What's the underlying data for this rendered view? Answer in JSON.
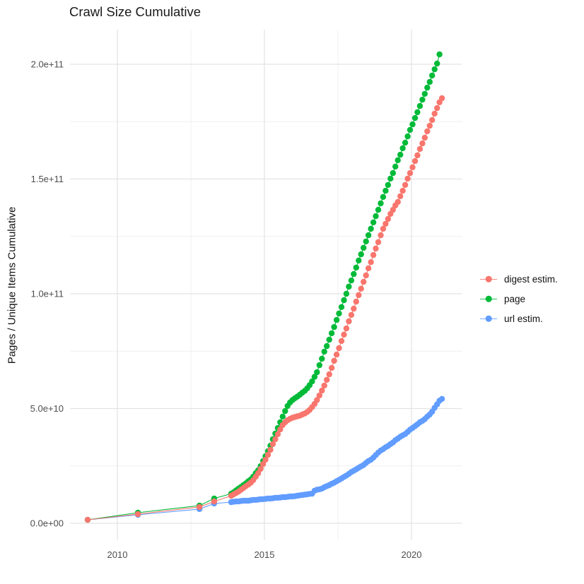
{
  "title": "Crawl Size Cumulative",
  "y_axis": {
    "label": "Pages / Unique Items Cumulative"
  },
  "legend": {
    "position": "right"
  },
  "colors": {
    "digest": "#F8766D",
    "page": "#00BA38",
    "url": "#619CFF",
    "grid_major": "#E3E3E3",
    "grid_minor": "#EFEFEF",
    "tick_text": "#4d4d4d"
  },
  "chart_data": {
    "type": "scatter",
    "title": "Crawl Size Cumulative",
    "xlabel": "",
    "ylabel": "Pages / Unique Items Cumulative",
    "grid": true,
    "legend_position": "right",
    "value_unit": "items, stored in billions (1e9)",
    "xlim": [
      2008.4,
      2021.7
    ],
    "ylim_e9": [
      0,
      215
    ],
    "x_ticks": [
      {
        "v": 2010,
        "label": "2010"
      },
      {
        "v": 2015,
        "label": "2015"
      },
      {
        "v": 2020,
        "label": "2020"
      }
    ],
    "x_minor": [
      2012.5,
      2017.5
    ],
    "y_ticks": [
      {
        "v": 0,
        "label": "0.0e+00"
      },
      {
        "v": 50,
        "label": "5.0e+10"
      },
      {
        "v": 100,
        "label": "1.0e+11"
      },
      {
        "v": 150,
        "label": "1.5e+11"
      },
      {
        "v": 200,
        "label": "2.0e+11"
      }
    ],
    "y_minor": [
      25,
      75,
      125,
      175
    ],
    "monthly_step": 0.08333,
    "series": [
      {
        "name": "digest estim.",
        "color": "#F8766D",
        "early": [
          [
            2008.99,
            1.5
          ],
          [
            2010.7,
            4.0
          ],
          [
            2012.79,
            7.1
          ],
          [
            2013.29,
            9.5
          ]
        ],
        "monthly_start": 2013.87,
        "monthly_values": [
          12.0,
          12.6,
          13.2,
          13.8,
          14.6,
          15.4,
          16.2,
          16.9,
          17.7,
          18.8,
          20.3,
          21.8,
          23.7,
          25.8,
          27.7,
          29.8,
          32.0,
          34.5,
          36.6,
          38.8,
          40.9,
          42.8,
          44.0,
          44.9,
          45.5,
          46.0,
          46.3,
          46.6,
          46.9,
          47.4,
          47.8,
          48.5,
          49.4,
          50.6,
          52.0,
          53.7,
          55.7,
          57.8,
          60.0,
          62.5,
          64.9,
          67.7,
          70.8,
          73.5,
          76.3,
          79.4,
          82.2,
          84.9,
          88.0,
          90.8,
          93.5,
          96.6,
          99.4,
          102.2,
          105.2,
          108.0,
          111.1,
          113.8,
          116.9,
          119.7,
          122.5,
          125.5,
          128.3,
          130.5,
          132.6,
          134.8,
          136.6,
          138.5,
          140.0,
          142.5,
          144.9,
          147.4,
          150.2,
          152.6,
          155.1,
          157.8,
          160.3,
          163.1,
          165.5,
          168.0,
          170.8,
          173.2,
          175.7,
          178.5,
          180.9,
          183.4,
          185.2
        ]
      },
      {
        "name": "page",
        "color": "#00BA38",
        "early": [
          [
            2008.99,
            1.5
          ],
          [
            2010.7,
            4.6
          ],
          [
            2012.79,
            7.7
          ],
          [
            2013.29,
            10.8
          ]
        ],
        "monthly_start": 2013.87,
        "monthly_values": [
          12.9,
          13.5,
          14.3,
          15.1,
          15.8,
          16.6,
          17.4,
          18.3,
          19.1,
          20.3,
          21.8,
          23.1,
          24.9,
          27.1,
          29.2,
          31.4,
          33.8,
          36.6,
          39.1,
          41.5,
          44.0,
          46.5,
          48.9,
          51.1,
          52.6,
          53.7,
          54.5,
          55.2,
          56.0,
          56.9,
          57.7,
          58.8,
          60.2,
          61.8,
          63.8,
          65.8,
          68.9,
          71.7,
          74.8,
          77.2,
          80.0,
          82.8,
          85.5,
          88.6,
          91.4,
          94.2,
          97.2,
          100.0,
          103.1,
          105.8,
          108.6,
          111.4,
          114.5,
          117.2,
          120.0,
          122.8,
          125.5,
          128.3,
          131.1,
          133.8,
          136.6,
          139.4,
          142.2,
          144.9,
          147.4,
          150.2,
          152.6,
          155.4,
          158.2,
          160.6,
          163.4,
          165.8,
          168.6,
          171.4,
          173.8,
          176.6,
          179.1,
          181.8,
          184.6,
          187.1,
          189.8,
          192.3,
          195.1,
          197.8,
          200.3,
          204.3
        ]
      },
      {
        "name": "url estim.",
        "color": "#619CFF",
        "early": [
          [
            2008.99,
            1.5
          ],
          [
            2010.7,
            3.7
          ],
          [
            2012.79,
            6.2
          ],
          [
            2013.29,
            8.6
          ]
        ],
        "monthly_start": 2013.87,
        "monthly_values": [
          9.2,
          9.4,
          9.5,
          9.5,
          9.7,
          9.8,
          9.8,
          9.8,
          10.0,
          10.2,
          10.2,
          10.3,
          10.5,
          10.5,
          10.6,
          10.8,
          10.8,
          10.9,
          11.1,
          11.1,
          11.2,
          11.4,
          11.4,
          11.5,
          11.7,
          11.7,
          11.8,
          12.0,
          12.2,
          12.3,
          12.5,
          12.6,
          12.8,
          12.9,
          14.2,
          14.6,
          14.8,
          15.1,
          15.7,
          16.2,
          16.6,
          17.2,
          17.7,
          18.3,
          18.9,
          19.5,
          20.2,
          20.8,
          21.5,
          22.3,
          22.9,
          23.5,
          24.2,
          24.8,
          25.4,
          26.3,
          27.1,
          27.7,
          28.6,
          29.7,
          30.8,
          31.7,
          32.3,
          33.1,
          33.7,
          34.5,
          35.2,
          36.2,
          36.9,
          37.7,
          38.3,
          38.9,
          39.8,
          40.8,
          41.5,
          42.3,
          43.1,
          44.0,
          44.6,
          45.4,
          46.5,
          47.4,
          48.6,
          50.3,
          51.8,
          53.4,
          54.2
        ]
      }
    ]
  }
}
